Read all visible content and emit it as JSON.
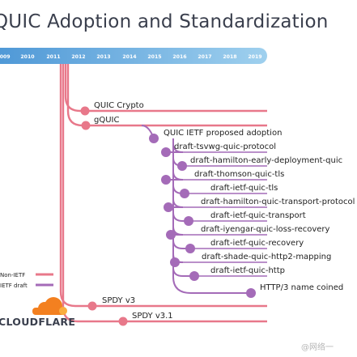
{
  "title": "QUIC Adoption and Standardization",
  "years": [
    "2009",
    "2010",
    "2011",
    "2012",
    "2013",
    "2014",
    "2015",
    "2016",
    "2017",
    "2018",
    "2019"
  ],
  "colors": {
    "non_ietf": "#e8788a",
    "ietf_draft": "#a46bb8",
    "bar_start": "#4d97d6",
    "bar_end": "#9fd0ee"
  },
  "non_ietf": [
    {
      "label": "QUIC Crypto"
    },
    {
      "label": "gQUIC"
    },
    {
      "label": "SPDY v3"
    },
    {
      "label": "SPDY v3.1"
    }
  ],
  "ietf": [
    {
      "label": "QUIC IETF proposed adoption"
    },
    {
      "label": "draft-tsvwg-quic-protocol"
    },
    {
      "label": "draft-hamilton-early-deployment-quic"
    },
    {
      "label": "draft-thomson-quic-tls"
    },
    {
      "label": "draft-ietf-quic-tls"
    },
    {
      "label": "draft-hamilton-quic-transport-protocol"
    },
    {
      "label": "draft-ietf-quic-transport"
    },
    {
      "label": "draft-iyengar-quic-loss-recovery"
    },
    {
      "label": "draft-ietf-quic-recovery"
    },
    {
      "label": "draft-shade-quic-http2-mapping"
    },
    {
      "label": "draft-ietf-quic-http"
    },
    {
      "label": "HTTP/3 name coined"
    }
  ],
  "legend": {
    "non_ietf": "Non-IETF",
    "ietf": "IETF draft"
  },
  "brand": "CLOUDFLARE",
  "watermark": "@网络一"
}
